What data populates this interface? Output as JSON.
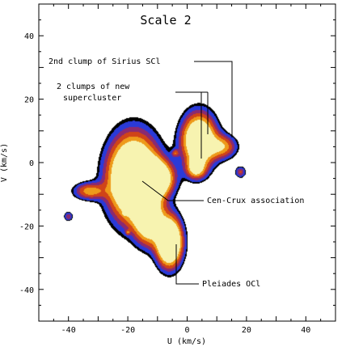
{
  "chart_data": {
    "type": "heatmap",
    "title": "Scale 2",
    "xlabel": "U (km/s)",
    "ylabel": "V (km/s)",
    "xlim": [
      -50,
      50
    ],
    "ylim": [
      -50,
      50
    ],
    "xticks": [
      -40,
      -20,
      0,
      20,
      40
    ],
    "yticks": [
      -40,
      -20,
      0,
      20,
      40
    ],
    "grid": false,
    "level_colors": [
      "#000000",
      "#2a3ad8",
      "#8a2a70",
      "#d04418",
      "#ee9a1a",
      "#f7f3b0"
    ],
    "clumps": [
      {
        "u": -18,
        "v": -5,
        "su": 5.5,
        "sv": 8.5,
        "peak": 6
      },
      {
        "u": -11,
        "v": -5,
        "su": 4.0,
        "sv": 3.5,
        "peak": 4.5
      },
      {
        "u": -13,
        "v": -18,
        "su": 3.0,
        "sv": 5.0,
        "peak": 3.5
      },
      {
        "u": -6,
        "v": -25,
        "su": 2.8,
        "sv": 5.0,
        "peak": 5.5
      },
      {
        "u": 4,
        "v": 7,
        "su": 3.8,
        "sv": 5.5,
        "peak": 4.5
      },
      {
        "u": 3,
        "v": -2,
        "su": 2.2,
        "sv": 2.2,
        "peak": 2.2
      },
      {
        "u": 12,
        "v": 5,
        "su": 3.2,
        "sv": 2.5,
        "peak": 2.0
      },
      {
        "u": -33,
        "v": -9,
        "su": 3.5,
        "sv": 1.8,
        "peak": 2.0
      },
      {
        "u": -40,
        "v": -17,
        "su": 1.0,
        "sv": 1.0,
        "peak": 1.3
      },
      {
        "u": 18,
        "v": -3,
        "su": 1.2,
        "sv": 1.2,
        "peak": 1.4
      },
      {
        "u": -4,
        "v": 3,
        "su": 0.8,
        "sv": 0.8,
        "peak": 1.2
      },
      {
        "u": -21,
        "v": -16,
        "su": 0.5,
        "sv": 0.5,
        "peak": 1.1
      },
      {
        "u": -20,
        "v": -22,
        "su": 0.5,
        "sv": 0.5,
        "peak": 1.1
      }
    ],
    "annotations": [
      {
        "text": "2nd clump of Sirius SCl"
      },
      {
        "text": "2 clumps of new"
      },
      {
        "text": "supercluster"
      },
      {
        "text": "Cen-Crux association"
      },
      {
        "text": "Pleiades OCl"
      }
    ]
  }
}
